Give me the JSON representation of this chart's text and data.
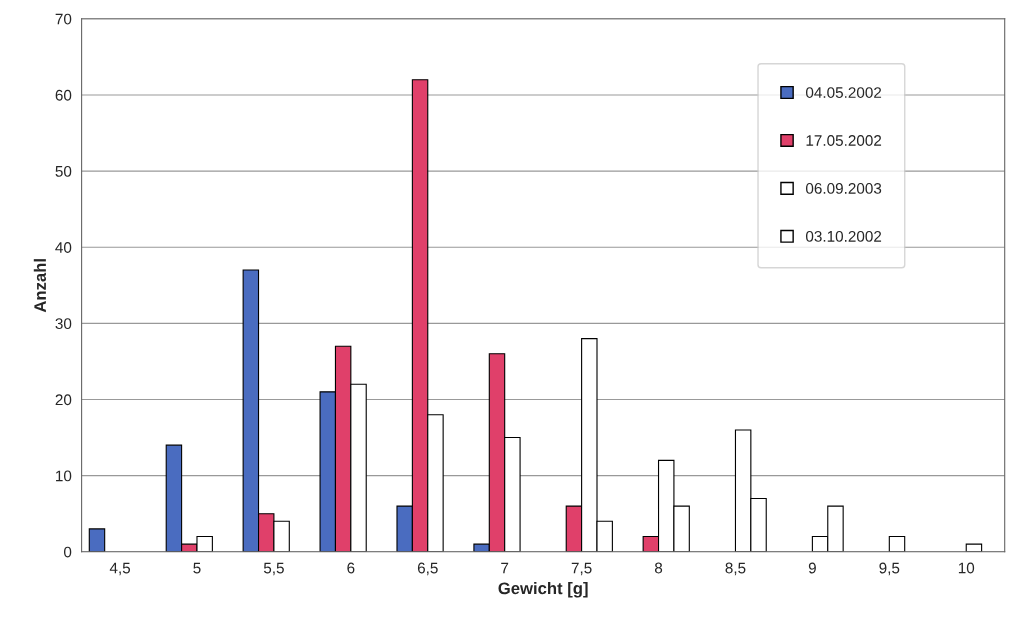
{
  "chart_data": {
    "type": "bar",
    "xlabel": "Gewicht [g]",
    "ylabel": "Anzahl",
    "categories": [
      "4,5",
      "5",
      "5,5",
      "6",
      "6,5",
      "7",
      "7,5",
      "8",
      "8,5",
      "9",
      "9,5",
      "10"
    ],
    "series": [
      {
        "name": "04.05.2002",
        "color": "#4a6cc0",
        "values": [
          3,
          14,
          37,
          21,
          6,
          1,
          0,
          0,
          0,
          0,
          0,
          0
        ]
      },
      {
        "name": "17.05.2002",
        "color": "#e0406a",
        "values": [
          0,
          1,
          5,
          27,
          62,
          26,
          6,
          2,
          0,
          0,
          0,
          0
        ]
      },
      {
        "name": "06.09.2003",
        "color": "#ffffff",
        "values": [
          0,
          2,
          4,
          22,
          18,
          15,
          28,
          12,
          16,
          2,
          2,
          1
        ]
      },
      {
        "name": "03.10.2002",
        "color": "#ffffff",
        "values": [
          0,
          0,
          0,
          0,
          0,
          0,
          4,
          6,
          7,
          6,
          0,
          0
        ]
      }
    ],
    "ylim": [
      0,
      70
    ],
    "yticks": [
      0,
      10,
      20,
      30,
      40,
      50,
      60,
      70
    ],
    "grid": "y",
    "legend": "top right"
  }
}
